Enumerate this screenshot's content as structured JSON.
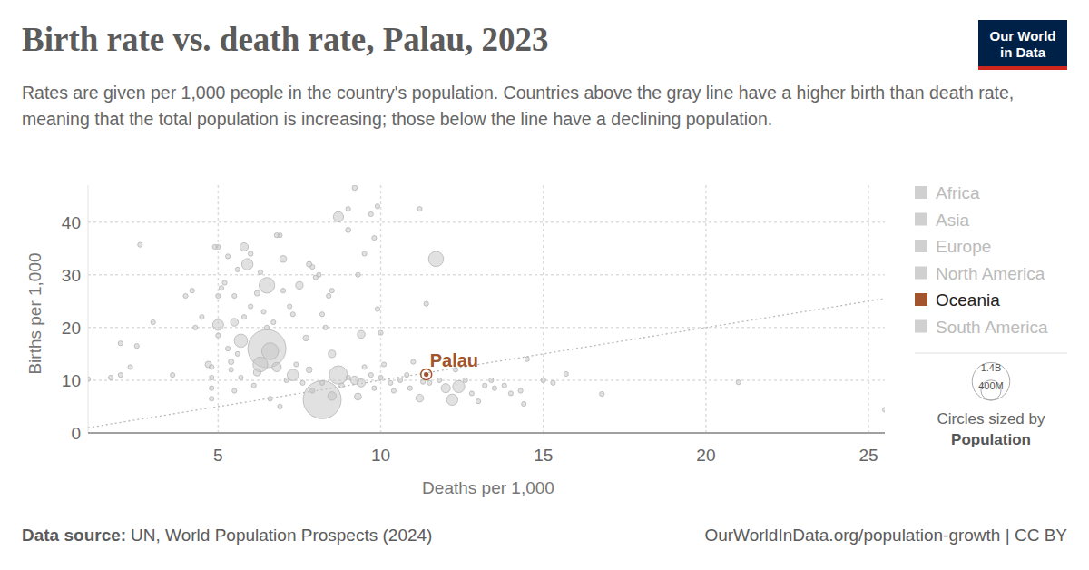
{
  "chart_data": {
    "type": "scatter",
    "title": "Birth rate vs. death rate, Palau, 2023",
    "subtitle": "Rates are given per 1,000 people in the country's population. Countries above the gray line have a higher birth than death rate, meaning that the total population is increasing; those below the line have a declining population.",
    "x_label": "Deaths per 1,000",
    "y_label": "Births per 1,000",
    "xlim": [
      1,
      25.5
    ],
    "ylim": [
      0,
      47
    ],
    "xticks": [
      5,
      10,
      15,
      20,
      25
    ],
    "yticks": [
      0,
      10,
      20,
      30,
      40
    ],
    "grid": true,
    "color": "#c8c8c8",
    "x": [
      1.0,
      1.7,
      2.0,
      2.0,
      2.3,
      2.5,
      2.6,
      3.0,
      3.6,
      4.0,
      4.2,
      4.3,
      4.5,
      4.7,
      4.8,
      4.9,
      5.0,
      4.8,
      4.8,
      4.8,
      5.0,
      5.0,
      5.0,
      5.1,
      5.2,
      5.3,
      5.3,
      5.4,
      5.4,
      5.5,
      5.5,
      5.6,
      5.6,
      5.7,
      5.8,
      5.8,
      5.9,
      6.0,
      6.0,
      6.1,
      6.2,
      6.2,
      6.3,
      6.4,
      6.5,
      6.5,
      6.5,
      6.6,
      6.7,
      6.8,
      6.9,
      7.0,
      7.0,
      7.2,
      7.3,
      7.5,
      7.7,
      7.8,
      7.9,
      8.0,
      8.1,
      8.2,
      8.3,
      8.4,
      8.5,
      8.5,
      8.7,
      9.0,
      9.0,
      9.2,
      9.4,
      9.5,
      9.7,
      9.8,
      9.9,
      10.0,
      11.2,
      11.4,
      11.7,
      9.9,
      9.3,
      5.5,
      5.7,
      6.3,
      6.6,
      6.8,
      6.9,
      7.1,
      7.3,
      7.4,
      7.6,
      7.8,
      7.9,
      8.2,
      8.2,
      8.5,
      8.7,
      8.8,
      9.0,
      9.2,
      9.3,
      9.4,
      9.5,
      9.7,
      9.8,
      10.0,
      10.1,
      10.3,
      10.4,
      10.6,
      10.8,
      10.9,
      11.0,
      11.2,
      11.3,
      11.5,
      11.8,
      12.0,
      12.2,
      12.4,
      12.3,
      12.6,
      12.8,
      13.0,
      13.2,
      13.4,
      13.5,
      13.8,
      14.0,
      14.3,
      14.4,
      14.5,
      15.0,
      15.3,
      15.7,
      16.8,
      21.0,
      25.5
    ],
    "values": [
      10.2,
      10.5,
      17,
      11,
      12.5,
      16.5,
      35.7,
      21,
      11,
      26,
      27,
      20,
      22,
      13,
      12.5,
      35.3,
      35.3,
      10.5,
      6.5,
      8.5,
      20.5,
      18.5,
      26,
      27.5,
      28.5,
      16,
      33.5,
      12,
      13.5,
      21,
      26,
      31,
      15,
      17.5,
      35.3,
      22,
      32,
      34,
      24,
      9,
      11.5,
      26.5,
      30.5,
      23,
      28,
      20,
      16,
      15.5,
      21,
      37.5,
      37.5,
      33,
      27,
      24,
      22.5,
      28,
      18,
      32,
      31.5,
      29.5,
      30,
      22.5,
      20,
      26,
      15,
      27,
      41,
      38.5,
      42.5,
      46.5,
      18.7,
      34,
      41.5,
      37,
      43,
      19,
      42.5,
      24.5,
      33,
      23.5,
      30,
      8,
      10.5,
      13,
      6.5,
      12.5,
      5,
      10,
      11,
      13,
      9.5,
      12,
      8,
      6.3,
      9.5,
      7,
      11,
      9,
      10.5,
      10,
      6.9,
      9.5,
      12.5,
      11,
      8.5,
      10.5,
      13,
      9.5,
      8,
      10,
      11,
      8.5,
      13.5,
      6.6,
      9.7,
      9.5,
      10,
      8.5,
      6.3,
      8.8,
      12,
      10,
      7.5,
      6,
      9,
      10,
      8.5,
      9,
      7.5,
      8,
      5.5,
      14,
      10,
      9.5,
      11.2,
      7.4,
      9.6,
      4.4
    ],
    "sizes": [
      3,
      3,
      2,
      1,
      3,
      2,
      1,
      4,
      5,
      5,
      3,
      10,
      8,
      40,
      15,
      12,
      15,
      4,
      2,
      3,
      117,
      6,
      9,
      18,
      7,
      5,
      20,
      6,
      30,
      60,
      10,
      14,
      8,
      173,
      67,
      12,
      126,
      25,
      11,
      4,
      52,
      30,
      20,
      16,
      240,
      20,
      1430,
      278,
      8,
      5,
      6,
      48,
      12,
      6,
      7,
      55,
      34,
      30,
      18,
      10,
      9,
      5,
      4,
      6,
      54,
      14,
      102,
      27,
      7,
      26,
      60,
      8,
      5,
      13,
      4,
      3,
      2,
      6,
      224,
      4,
      3,
      3,
      5,
      216,
      10,
      85,
      2,
      6,
      128,
      7,
      18,
      36,
      9,
      1420,
      20,
      71,
      335,
      26,
      11,
      68,
      48,
      67,
      6,
      10,
      5,
      11,
      4,
      9,
      10,
      3,
      2,
      7,
      2,
      59,
      4,
      5,
      6,
      84,
      124,
      144,
      4,
      3,
      2,
      3,
      2,
      4,
      6,
      3,
      2,
      3,
      7,
      1,
      10,
      2,
      3,
      2,
      1,
      1
    ],
    "highlight": {
      "label": "Palau",
      "x": 11.4,
      "y": 11.1,
      "size": 0.018,
      "color": "#a2552c"
    },
    "legend_entries": [
      "Africa",
      "Asia",
      "Europe",
      "North America",
      "Oceania",
      "South America"
    ],
    "legend_colors": [
      "#d0d0d0",
      "#d0d0d0",
      "#d0d0d0",
      "#d0d0d0",
      "#a2552c",
      "#d0d0d0"
    ],
    "size_legend": {
      "title": "Circles sized by",
      "variable": "Population",
      "ticks": [
        {
          "value": 1400,
          "label": "1.4B"
        },
        {
          "value": 400,
          "label": "400M"
        }
      ]
    },
    "source_label": "Data source:",
    "source": "UN, World Population Prospects (2024)",
    "footer_right": "OurWorldInData.org/population-growth | CC BY",
    "logo": [
      "Our World",
      "in Data"
    ]
  }
}
